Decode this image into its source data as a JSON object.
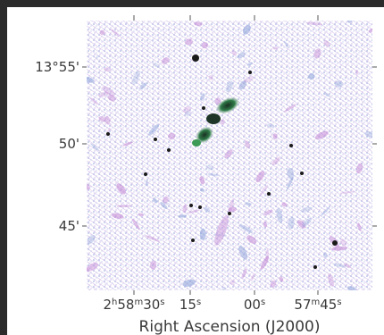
{
  "chart_data": {
    "type": "image",
    "xlabel": "Right Ascension (J2000)",
    "ylabel": "",
    "title": "",
    "x_ticks": [
      {
        "label_html": "2<tspan baseline-shift=\"super\" font-size=\"10\">h</tspan>58<tspan baseline-shift=\"super\" font-size=\"10\">m</tspan>30<tspan baseline-shift=\"super\" font-size=\"10\">s</tspan>",
        "ra": "2h58m30s"
      },
      {
        "label_html": "15<tspan baseline-shift=\"super\" font-size=\"10\">s</tspan>",
        "ra": "2h58m15s"
      },
      {
        "label_html": "00<tspan baseline-shift=\"super\" font-size=\"10\">s</tspan>",
        "ra": "2h58m00s"
      },
      {
        "label_html": "57<tspan baseline-shift=\"super\" font-size=\"10\">m</tspan>45<tspan baseline-shift=\"super\" font-size=\"10\">s</tspan>",
        "ra": "2h57m45s"
      }
    ],
    "y_ticks": [
      {
        "label": "13°55'",
        "dec": "13d55m"
      },
      {
        "label": "50'",
        "dec": "13d50m"
      },
      {
        "label": "45'",
        "dec": "13d45m"
      }
    ],
    "colors": {
      "background": "#ffffff",
      "noise_blue": "#9fb0dd",
      "noise_purple": "#c48bd6",
      "jet_dark": "#1d3a2a",
      "jet_green": "#2e8a4a",
      "frame": "#2b2b2b"
    }
  }
}
